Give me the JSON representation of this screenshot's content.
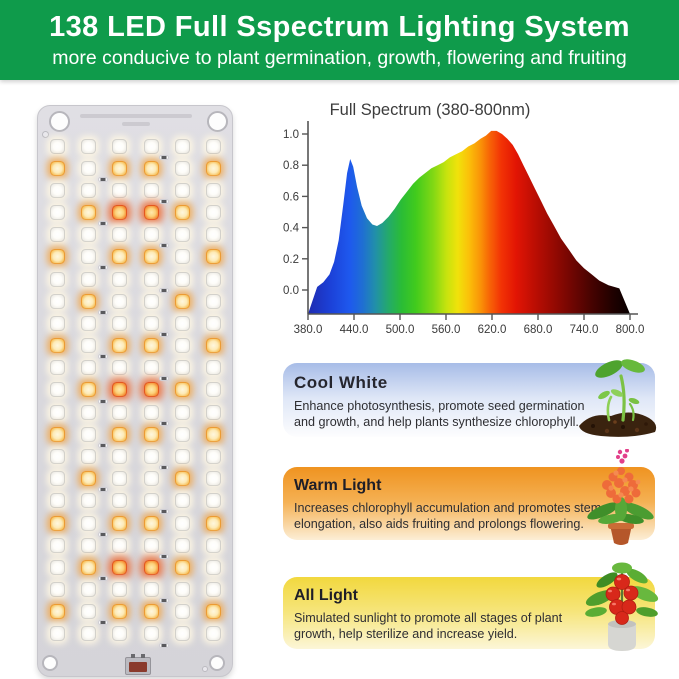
{
  "header": {
    "title": "138 LED Full Sspectrum Lighting System",
    "subtitle": "more conducive to plant germination, growth, flowering and fruiting",
    "bg_color": "#0f9b4b",
    "text_color": "#ffffff"
  },
  "panel": {
    "led_total": 138,
    "columns": 6,
    "rows": 23,
    "pattern": [
      "WWWWWW",
      "OWOOWO",
      "WWWWWW",
      "WORROW",
      "WWWWWW",
      "OWOOWO",
      "WWWWWW",
      "WOWWOW",
      "WWWWWW",
      "OWOOWO",
      "WWWWWW",
      "WORROW",
      "WWWWWW",
      "OWOOWO",
      "WWWWWW",
      "WOWWOW",
      "WWWWWW",
      "OWOOWO",
      "WWWWWW",
      "WORROW",
      "WWWWWW",
      "OWOOWO",
      "WWWWWW"
    ],
    "legend": {
      "W": "cool-white-led",
      "O": "warm-orange-led",
      "R": "deep-red-led"
    },
    "led_colors": {
      "W": "#fdfcf8",
      "O": "#f0a23a",
      "R": "#ea5a24"
    }
  },
  "chart_data": {
    "type": "area",
    "title": "Full Spectrum (380-800nm)",
    "xlabel": "",
    "ylabel": "",
    "xlim": [
      380,
      800
    ],
    "ylim": [
      0,
      1.0
    ],
    "x_ticks": [
      "380.0",
      "440.0",
      "500.0",
      "560.0",
      "620.0",
      "680.0",
      "740.0",
      "800.0"
    ],
    "y_ticks": [
      "0.0",
      "0.2",
      "0.4",
      "0.6",
      "0.8",
      "1.0"
    ],
    "grid": false,
    "legend_position": "none",
    "fill": "spectral-rainbow-gradient",
    "x": [
      380,
      392,
      400,
      408,
      414,
      420,
      426,
      431,
      435,
      439,
      444,
      450,
      457,
      464,
      470,
      477,
      485,
      493,
      501,
      509,
      517,
      525,
      533,
      541,
      549,
      557,
      565,
      573,
      581,
      589,
      597,
      605,
      612,
      619,
      626,
      633,
      640,
      647,
      654,
      661,
      668,
      676,
      684,
      692,
      700,
      710,
      720,
      730,
      740,
      750,
      760,
      772,
      786,
      800
    ],
    "values": [
      0.0,
      0.02,
      0.05,
      0.1,
      0.18,
      0.32,
      0.55,
      0.75,
      0.84,
      0.79,
      0.66,
      0.54,
      0.46,
      0.42,
      0.41,
      0.43,
      0.47,
      0.52,
      0.58,
      0.63,
      0.68,
      0.72,
      0.75,
      0.78,
      0.8,
      0.82,
      0.85,
      0.87,
      0.89,
      0.92,
      0.94,
      0.97,
      0.99,
      1.02,
      1.02,
      1.0,
      0.97,
      0.93,
      0.87,
      0.8,
      0.73,
      0.65,
      0.57,
      0.49,
      0.42,
      0.33,
      0.26,
      0.19,
      0.14,
      0.1,
      0.06,
      0.03,
      0.01,
      0.0
    ],
    "annotations": [
      "blue peak ~435nm (0.84)",
      "red peak ~620nm (1.0)"
    ]
  },
  "cards": [
    {
      "title": "Cool White",
      "body": "Enhance photosynthesis, promote seed germination and growth, and help plants synthesize chlorophyll.",
      "top_color": "#a7bce7",
      "image": "seedling-sprout-in-soil"
    },
    {
      "title": "Warm Light",
      "body": "Increases chlorophyll accumulation and promotes stem elongation, also aids fruiting and prolongs flowering.",
      "top_color": "#ef9320",
      "image": "flowering-potted-plant"
    },
    {
      "title": "All Light",
      "body": "Simulated sunlight to promote all stages of plant growth, help sterilize and increase yield.",
      "top_color": "#f2d83e",
      "image": "tomato-potted-plant"
    }
  ]
}
